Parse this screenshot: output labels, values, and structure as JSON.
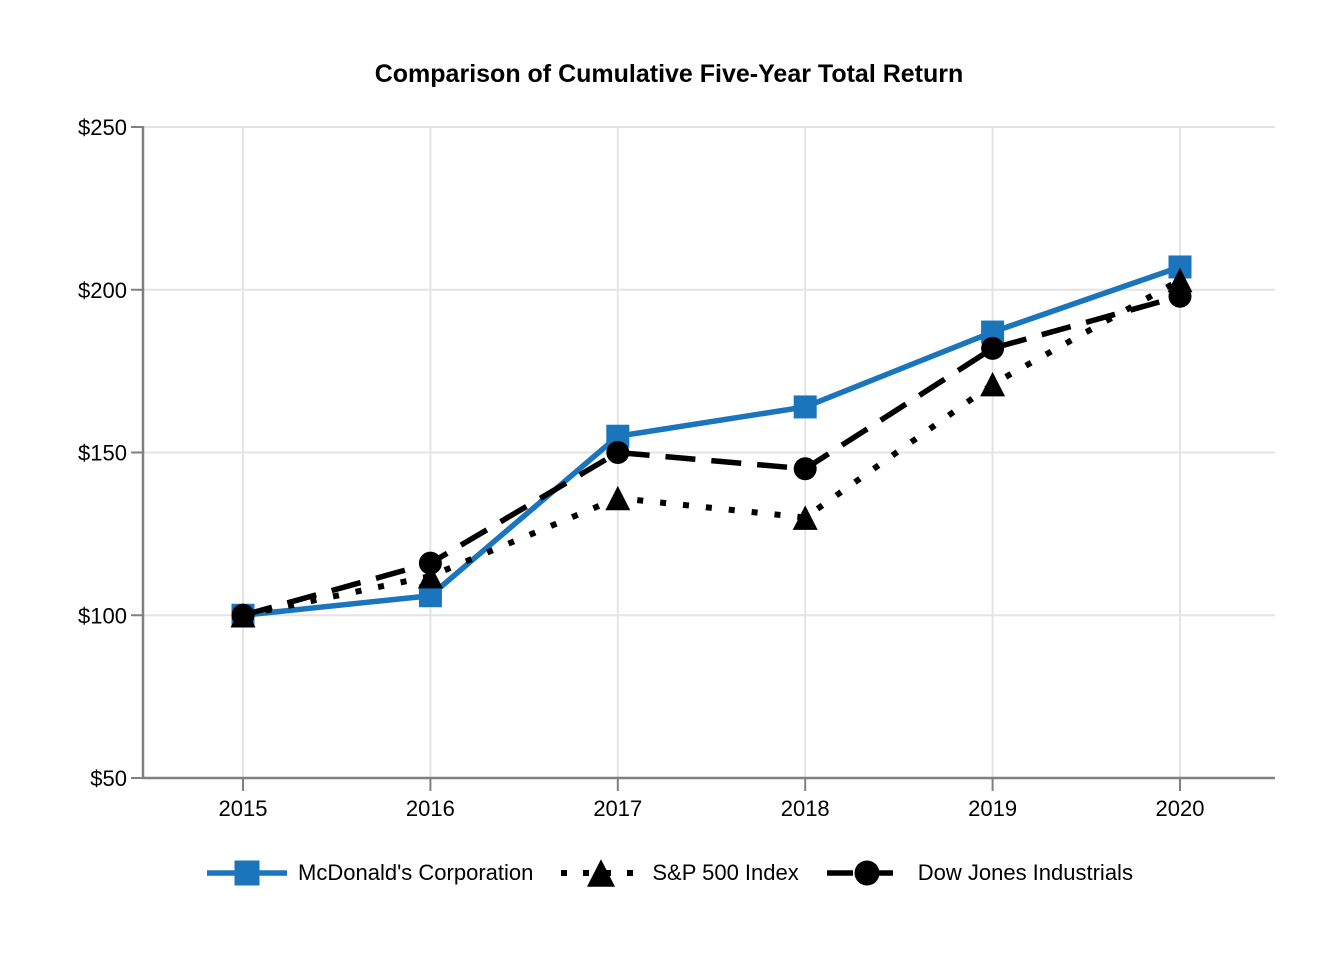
{
  "title": "Comparison of Cumulative Five-Year Total Return",
  "chart_data": {
    "type": "line",
    "title": "Comparison of Cumulative Five-Year Total Return",
    "x_categories": [
      "2015",
      "2016",
      "2017",
      "2018",
      "2019",
      "2020"
    ],
    "y_ticks": [
      50,
      100,
      150,
      200,
      250
    ],
    "y_tick_labels": [
      "$50",
      "$100",
      "$150",
      "$200",
      "$250"
    ],
    "ylim": [
      50,
      250
    ],
    "grid": true,
    "legend_position": "bottom",
    "series": [
      {
        "name": "McDonald's Corporation",
        "values": [
          100,
          106,
          155,
          164,
          187,
          207
        ],
        "color": "#1B75BC",
        "line_style": "solid",
        "marker": "square"
      },
      {
        "name": "S&P 500 Index",
        "values": [
          100,
          112,
          136,
          130,
          171,
          203
        ],
        "color": "#000000",
        "line_style": "dotted",
        "marker": "triangle"
      },
      {
        "name": "Dow Jones Industrials",
        "values": [
          100,
          116,
          150,
          145,
          182,
          198
        ],
        "color": "#000000",
        "line_style": "dashed",
        "marker": "circle"
      }
    ],
    "axis_color": "#808080",
    "grid_color": "#E4E4E4",
    "text_color": "#000000"
  }
}
